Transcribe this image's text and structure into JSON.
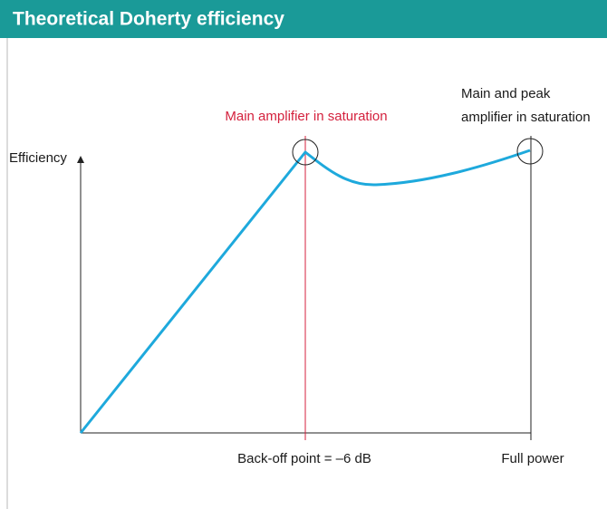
{
  "header": {
    "title": "Theoretical Doherty efficiency"
  },
  "axes": {
    "y_label": "Efficiency",
    "x_labels": [
      "Back-off point = –6 dB",
      "Full power"
    ]
  },
  "annotations": {
    "main_saturation": "Main amplifier in saturation",
    "peak_saturation": [
      "Main and peak",
      "amplifier in saturation"
    ]
  }
}
